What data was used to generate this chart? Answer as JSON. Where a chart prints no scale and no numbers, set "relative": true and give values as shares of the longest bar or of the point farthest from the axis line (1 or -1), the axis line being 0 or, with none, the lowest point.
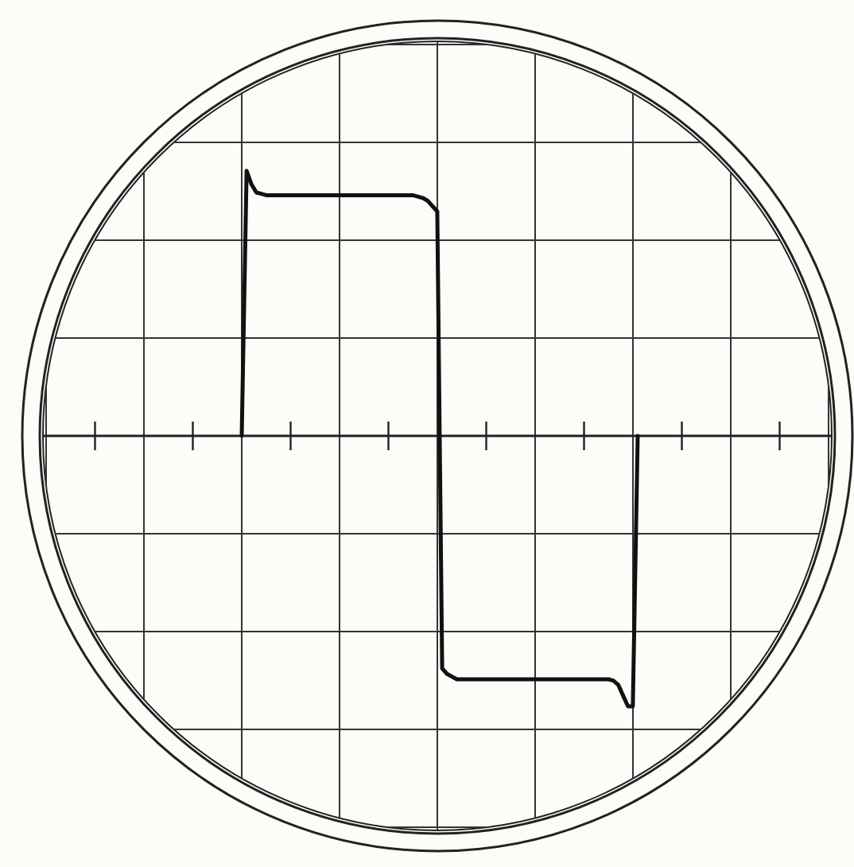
{
  "chart_data": {
    "type": "line",
    "relative": true,
    "grid": true,
    "marker": "none",
    "line_style": "solid",
    "categories": [
      null,
      null,
      null,
      null,
      null,
      null,
      null,
      null,
      null,
      null,
      null,
      null,
      null,
      null,
      null,
      null,
      null,
      null,
      null,
      null,
      null,
      null,
      null,
      null,
      null,
      null,
      null,
      null,
      null,
      null,
      null,
      null,
      null,
      null,
      null,
      null,
      null,
      null,
      null,
      null,
      null,
      null,
      null,
      null,
      null,
      null,
      null,
      null,
      null,
      null,
      null,
      null,
      null,
      null,
      null,
      null,
      null,
      null,
      null,
      null,
      null,
      null,
      null,
      null,
      null,
      null,
      null,
      null,
      null,
      null,
      null,
      null,
      null,
      null,
      null,
      null,
      null,
      null,
      null,
      null,
      null,
      null
    ],
    "series": [
      {
        "color": "#111111",
        "values": [
          0,
          0.98,
          0.93,
          0.9,
          0.895,
          0.89,
          0.89,
          0.89,
          0.89,
          0.89,
          0.89,
          0.89,
          0.89,
          0.89,
          0.89,
          0.89,
          0.89,
          0.89,
          0.89,
          0.89,
          0.89,
          0.89,
          0.89,
          0.89,
          0.89,
          0.89,
          0.89,
          0.89,
          0.89,
          0.89,
          0.89,
          0.89,
          0.89,
          0.89,
          0.89,
          0.89,
          0.885,
          0.88,
          0.87,
          0.85,
          0.83,
          -0.86,
          -0.88,
          -0.89,
          -0.9,
          -0.9,
          -0.9,
          -0.9,
          -0.9,
          -0.9,
          -0.9,
          -0.9,
          -0.9,
          -0.9,
          -0.9,
          -0.9,
          -0.9,
          -0.9,
          -0.9,
          -0.9,
          -0.9,
          -0.9,
          -0.9,
          -0.9,
          -0.9,
          -0.9,
          -0.9,
          -0.9,
          -0.9,
          -0.9,
          -0.9,
          -0.9,
          -0.9,
          -0.9,
          -0.9,
          -0.9,
          -0.905,
          -0.92,
          -0.96,
          -1,
          -1,
          0
        ]
      }
    ]
  }
}
